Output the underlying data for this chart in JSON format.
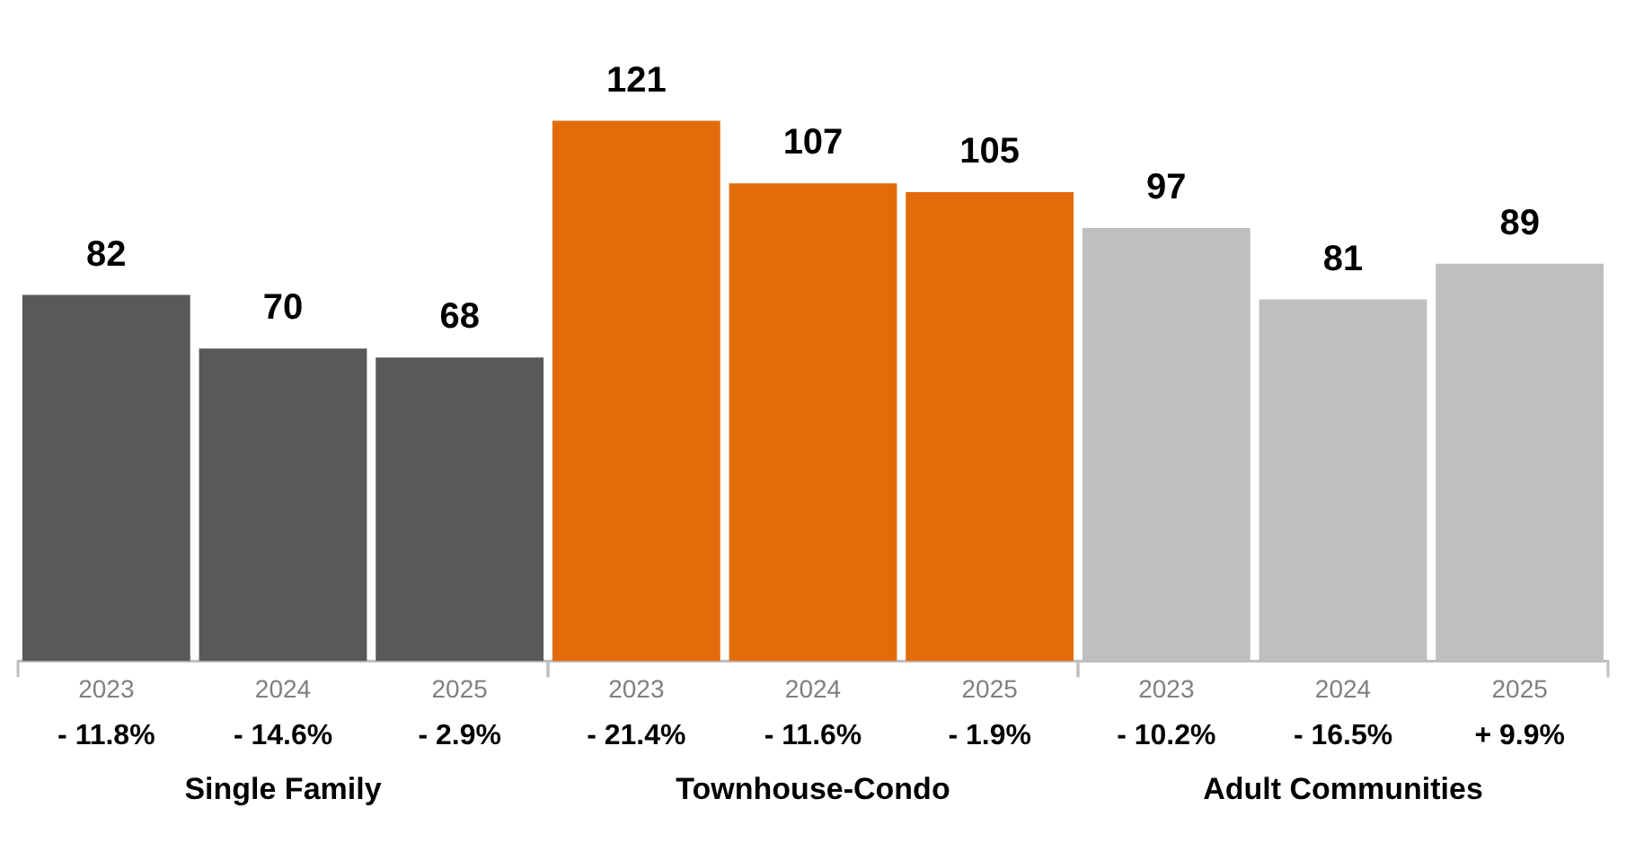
{
  "chart_data": {
    "type": "bar",
    "categories": [
      "2023",
      "2024",
      "2025",
      "2023",
      "2024",
      "2025",
      "2023",
      "2024",
      "2025"
    ],
    "series": [
      {
        "color": "#595959",
        "values": [
          82,
          70,
          68,
          null,
          null,
          null,
          null,
          null,
          null
        ]
      },
      {
        "color": "#e36c0a",
        "values": [
          null,
          null,
          null,
          121,
          107,
          105,
          null,
          null,
          null
        ]
      },
      {
        "color": "#bfbfbf",
        "values": [
          null,
          null,
          null,
          null,
          null,
          null,
          97,
          81,
          89
        ]
      }
    ],
    "data_labels": true,
    "grid": false,
    "legend": false,
    "tick_labels": "x",
    "annotations": [
      "- 11.8%",
      "- 14.6%",
      "- 2.9%",
      "- 21.4%",
      "- 11.6%",
      "- 1.9%",
      "- 10.2%",
      "- 16.5%",
      "+ 9.9%",
      "Single Family",
      "Townhouse-Condo",
      "Adult Communities"
    ]
  }
}
